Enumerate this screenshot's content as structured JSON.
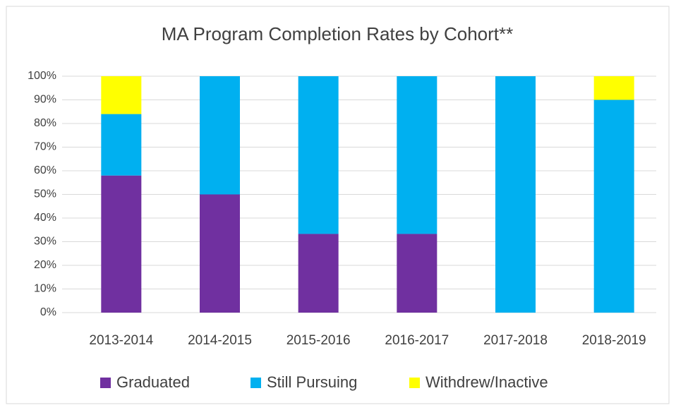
{
  "chart_data": {
    "type": "stacked_bar",
    "title": "MA Program Completion Rates by Cohort**",
    "categories": [
      "2013-2014",
      "2014-2015",
      "2015-2016",
      "2016-2017",
      "2017-2018",
      "2018-2019"
    ],
    "series": [
      {
        "name": "Graduated",
        "color": "#7030a0",
        "values": [
          58,
          50,
          33.3,
          33.3,
          0,
          0
        ]
      },
      {
        "name": "Still Pursuing",
        "color": "#00b0f0",
        "values": [
          26,
          50,
          66.7,
          66.7,
          100,
          90
        ]
      },
      {
        "name": "Withdrew/Inactive",
        "color": "#ffff00",
        "values": [
          16,
          0,
          0,
          0,
          0,
          10
        ]
      }
    ],
    "ylim": [
      0,
      100
    ],
    "yticks": [
      {
        "value": 0,
        "label": "0%"
      },
      {
        "value": 10,
        "label": "10%"
      },
      {
        "value": 20,
        "label": "20%"
      },
      {
        "value": 30,
        "label": "30%"
      },
      {
        "value": 40,
        "label": "40%"
      },
      {
        "value": 50,
        "label": "50%"
      },
      {
        "value": 60,
        "label": "60%"
      },
      {
        "value": 70,
        "label": "70%"
      },
      {
        "value": 80,
        "label": "80%"
      },
      {
        "value": 90,
        "label": "90%"
      },
      {
        "value": 100,
        "label": "100%"
      }
    ],
    "grid": true,
    "legend": "bottom"
  }
}
